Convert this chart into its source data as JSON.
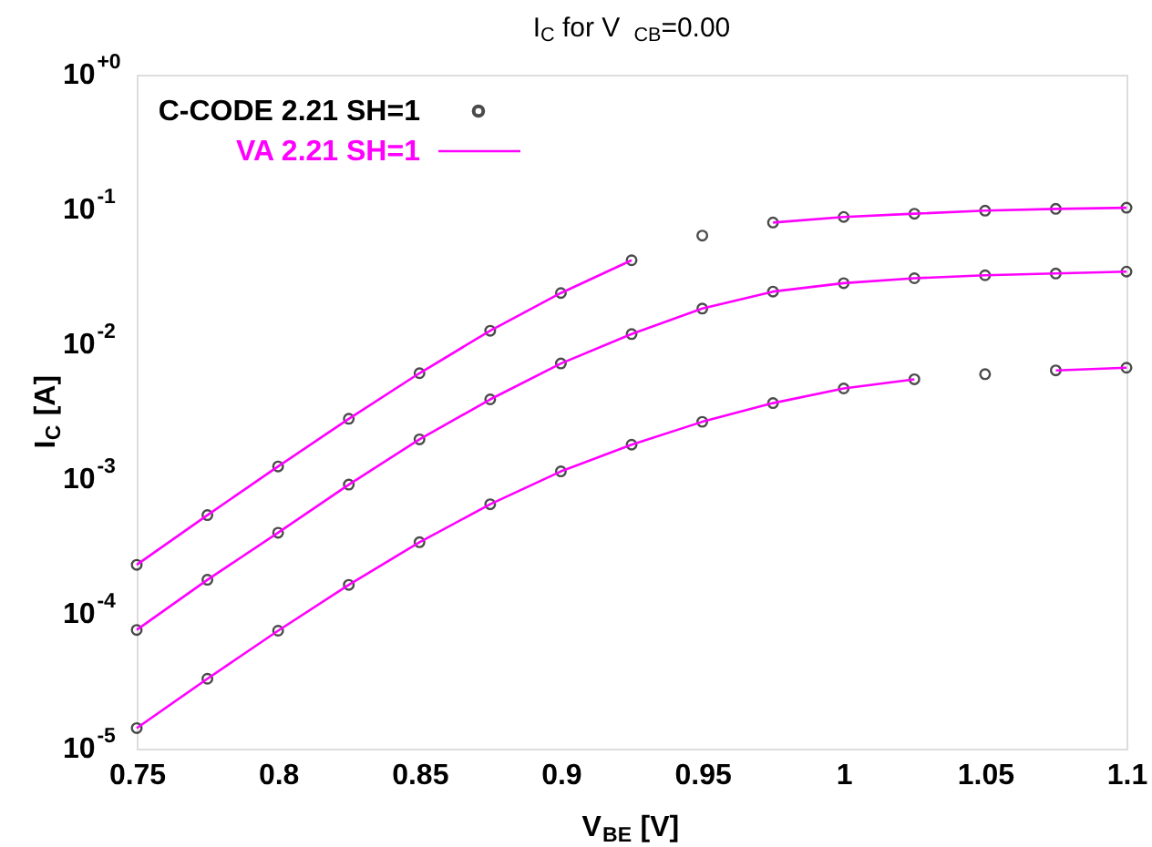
{
  "chart_data": {
    "type": "line",
    "title": "I$_{C}$ for V$_{CB}$=0.00",
    "xlabel": "V$_{BE}$ [V]",
    "ylabel": "I$_{C}$ [A]",
    "xlim": [
      0.75,
      1.1
    ],
    "xticks": [
      0.75,
      0.8,
      0.85,
      0.9,
      0.95,
      1,
      1.05,
      1.1
    ],
    "ylim": [
      1e-05,
      1
    ],
    "log": "y",
    "yticks": [
      {
        "value": 1e-05,
        "label": "10$^{-5}$"
      },
      {
        "value": 0.0001,
        "label": "10$^{-4}$"
      },
      {
        "value": 0.001,
        "label": "10$^{-3}$"
      },
      {
        "value": 0.01,
        "label": "10$^{-2}$"
      },
      {
        "value": 0.1,
        "label": "10$^{-1}$"
      },
      {
        "value": 1,
        "label": "10$^{+0}$"
      }
    ],
    "grid": false,
    "legend": "top left",
    "x": [
      0.75,
      0.775,
      0.8,
      0.825,
      0.85,
      0.875,
      0.9,
      0.925,
      0.95,
      0.975,
      1.0,
      1.025,
      1.05,
      1.075,
      1.1
    ],
    "series": [
      {
        "name": "C-CODE 2.21 SH=1",
        "type": "scatter",
        "marker": "circle",
        "color": "#000000",
        "x": [
          0.75,
          0.775,
          0.8,
          0.825,
          0.85,
          0.875,
          0.9,
          0.925,
          0.95,
          0.975,
          1.0,
          1.025,
          1.05,
          1.075,
          1.1,
          0.75,
          0.775,
          0.8,
          0.825,
          0.85,
          0.875,
          0.9,
          0.925,
          0.95,
          0.975,
          1.0,
          1.025,
          1.05,
          1.075,
          1.1,
          0.75,
          0.775,
          0.8,
          0.825,
          0.85,
          0.875,
          0.9,
          0.925,
          0.95,
          0.975,
          1.0,
          1.025,
          1.05,
          1.075,
          1.1
        ],
        "values": [
          0.000231,
          0.00054,
          0.00124,
          0.0028,
          0.0061,
          0.0126,
          0.024,
          0.042,
          0.064,
          0.08,
          0.088,
          0.093,
          0.098,
          0.101,
          0.103,
          7.6e-05,
          0.000179,
          0.0004,
          0.00091,
          0.00197,
          0.0039,
          0.0072,
          0.0119,
          0.0184,
          0.0246,
          0.0284,
          0.0309,
          0.0325,
          0.0335,
          0.0346,
          1.42e-05,
          3.3e-05,
          7.5e-05,
          0.000164,
          0.00034,
          0.00065,
          0.00114,
          0.0018,
          0.00266,
          0.00366,
          0.0047,
          0.0055,
          0.006,
          0.0064,
          0.0067
        ]
      },
      {
        "name": "VA 2.21 SH=1",
        "type": "line",
        "marker": "none",
        "line_style": "solid",
        "color": "#ff00ff",
        "values": [
          0.000231,
          0.00054,
          0.00124,
          0.0028,
          0.0061,
          0.0126,
          0.024,
          0.042,
          null,
          0.08,
          0.088,
          0.093,
          0.098,
          0.101,
          0.103
        ]
      },
      {
        "type": "line",
        "marker": "none",
        "line_style": "solid",
        "color": "#ff00ff",
        "values": [
          7.6e-05,
          0.000179,
          0.0004,
          0.00091,
          0.00197,
          0.0039,
          0.0072,
          0.0119,
          0.0184,
          0.0246,
          0.0284,
          0.0309,
          0.0325,
          0.0335,
          0.0346
        ]
      },
      {
        "type": "line",
        "marker": "none",
        "line_style": "solid",
        "color": "#ff00ff",
        "values": [
          1.42e-05,
          3.3e-05,
          7.5e-05,
          0.000164,
          0.00034,
          0.00065,
          0.00114,
          0.0018,
          0.00266,
          0.00366,
          0.0047,
          0.0055,
          null,
          0.0064,
          0.0067
        ]
      }
    ]
  }
}
